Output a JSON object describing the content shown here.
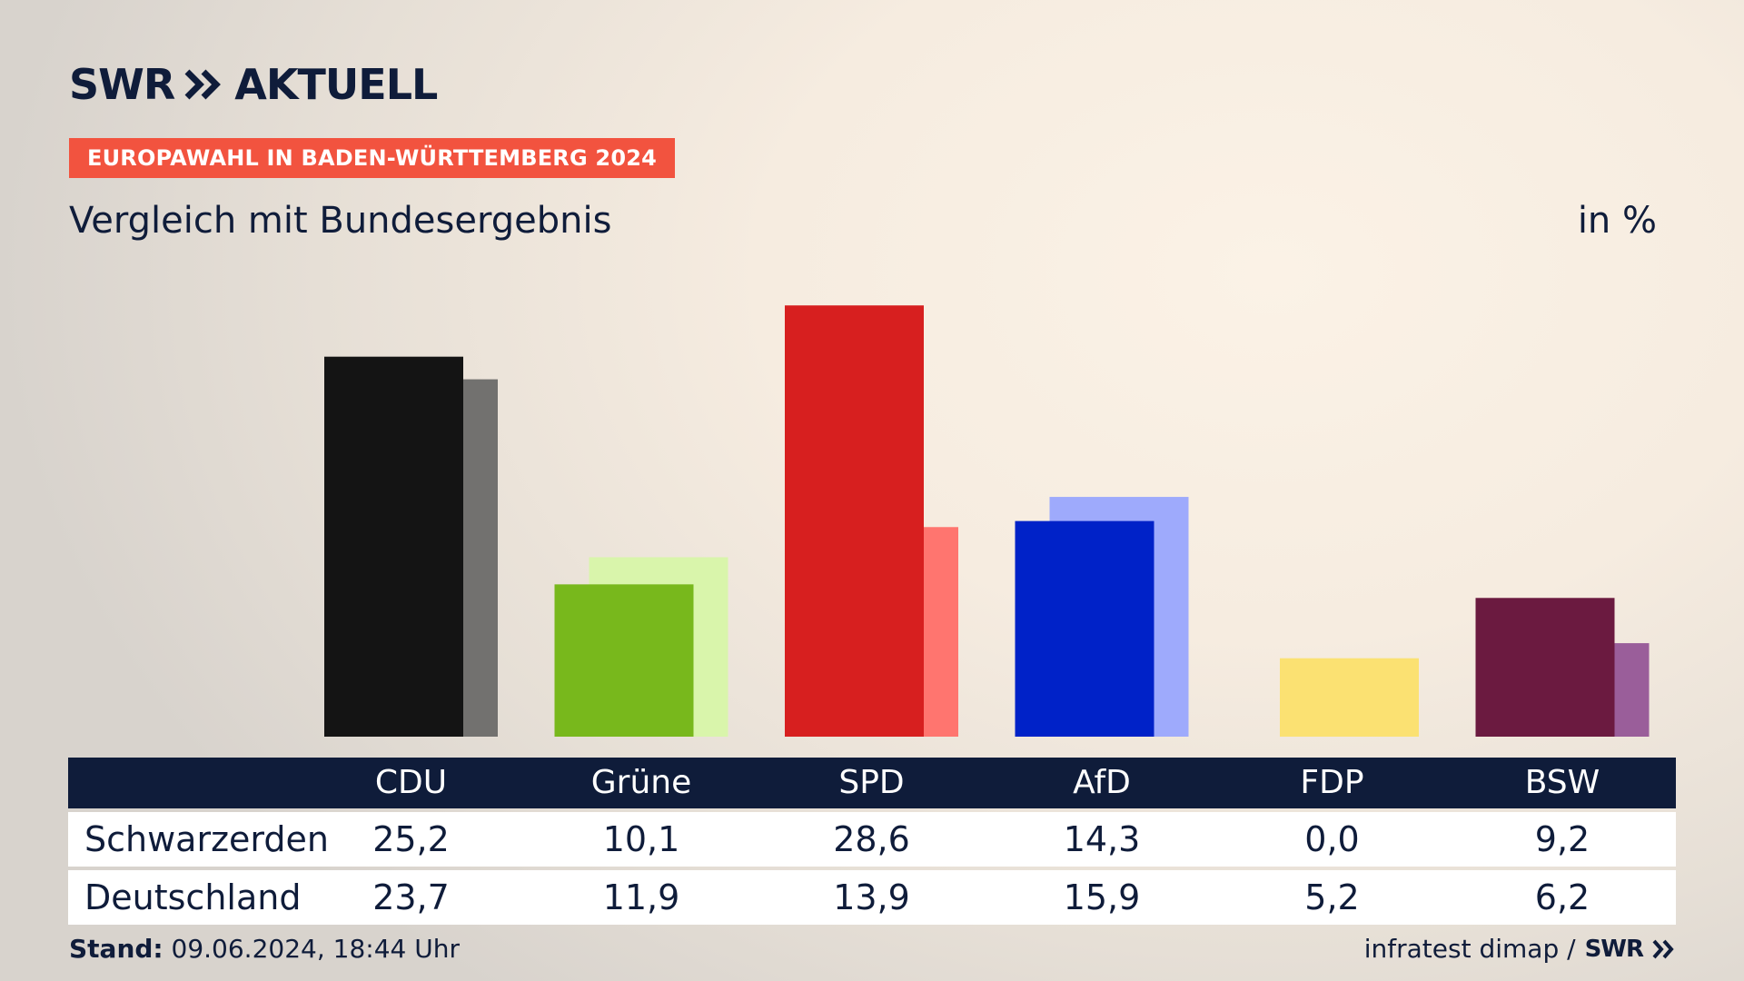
{
  "header": {
    "logo_swr": "SWR",
    "logo_aktuell": "AKTUELL",
    "badge": "EUROPAWAHL IN BADEN-WÜRTTEMBERG 2024",
    "subtitle": "Vergleich mit Bundesergebnis",
    "unit": "in %"
  },
  "colors": {
    "navy": "#0f1c3a",
    "badge": "#f2533f"
  },
  "chart_data": {
    "type": "bar",
    "title": "Vergleich mit Bundesergebnis",
    "ylabel": "in %",
    "ylim": [
      0,
      30
    ],
    "grid": false,
    "categories": [
      "CDU",
      "Grüne",
      "SPD",
      "AfD",
      "FDP",
      "BSW"
    ],
    "series": [
      {
        "name": "Schwarzerden",
        "values": [
          25.2,
          10.1,
          28.6,
          14.3,
          0.0,
          9.2
        ],
        "display": [
          "25,2",
          "10,1",
          "28,6",
          "14,3",
          "0,0",
          "9,2"
        ],
        "colors": [
          "#141414",
          "#78b81c",
          "#d71f1f",
          "#0022c8",
          "#fbe172",
          "#6b1a40"
        ]
      },
      {
        "name": "Deutschland",
        "values": [
          23.7,
          11.9,
          13.9,
          15.9,
          5.2,
          6.2
        ],
        "display": [
          "23,7",
          "11,9",
          "13,9",
          "15,9",
          "5,2",
          "6,2"
        ],
        "colors": [
          "#72716f",
          "#d9f5ab",
          "#ff756f",
          "#9eaafc",
          "#fbe172",
          "#9a5e9a"
        ]
      }
    ]
  },
  "footer": {
    "stand_label": "Stand:",
    "stand_value": " 09.06.2024, 18:44 Uhr",
    "source": "infratest dimap /",
    "swr": "SWR"
  }
}
